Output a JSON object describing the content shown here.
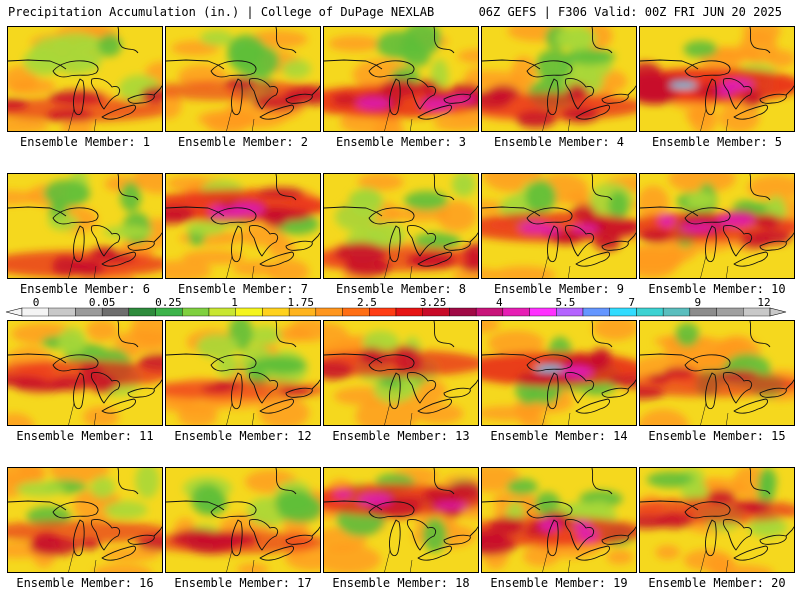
{
  "header": {
    "left": "Precipitation Accumulation (in.) | College of DuPage NEXLAB",
    "right": "06Z GEFS | F306 Valid: 00Z FRI JUN 20 2025"
  },
  "member_prefix": "Ensemble Member:",
  "members": [
    {
      "id": "1",
      "label": "Ensemble Member: 1",
      "green": 0.45,
      "wet": 0.4,
      "band": 0.78
    },
    {
      "id": "2",
      "label": "Ensemble Member: 2",
      "green": 0.55,
      "wet": 0.2,
      "band": 0.6
    },
    {
      "id": "3",
      "label": "Ensemble Member: 3",
      "green": 0.25,
      "wet": 0.85,
      "band": 0.7
    },
    {
      "id": "4",
      "label": "Ensemble Member: 4",
      "green": 0.6,
      "wet": 0.55,
      "band": 0.75
    },
    {
      "id": "5",
      "label": "Ensemble Member: 5",
      "green": 0.1,
      "wet": 0.95,
      "band": 0.55
    },
    {
      "id": "6",
      "label": "Ensemble Member: 6",
      "green": 0.5,
      "wet": 0.55,
      "band": 0.85
    },
    {
      "id": "7",
      "label": "Ensemble Member: 7",
      "green": 0.3,
      "wet": 0.85,
      "band": 0.3
    },
    {
      "id": "8",
      "label": "Ensemble Member: 8",
      "green": 0.55,
      "wet": 0.45,
      "band": 0.8
    },
    {
      "id": "9",
      "label": "Ensemble Member: 9",
      "green": 0.3,
      "wet": 0.7,
      "band": 0.5
    },
    {
      "id": "10",
      "label": "Ensemble Member: 10",
      "green": 0.6,
      "wet": 0.7,
      "band": 0.5
    },
    {
      "id": "11",
      "label": "Ensemble Member: 11",
      "green": 0.15,
      "wet": 0.6,
      "band": 0.5
    },
    {
      "id": "12",
      "label": "Ensemble Member: 12",
      "green": 0.6,
      "wet": 0.2,
      "band": 0.65
    },
    {
      "id": "13",
      "label": "Ensemble Member: 13",
      "green": 0.35,
      "wet": 0.55,
      "band": 0.4
    },
    {
      "id": "14",
      "label": "Ensemble Member: 14",
      "green": 0.35,
      "wet": 0.9,
      "band": 0.45
    },
    {
      "id": "15",
      "label": "Ensemble Member: 15",
      "green": 0.2,
      "wet": 0.4,
      "band": 0.6
    },
    {
      "id": "16",
      "label": "Ensemble Member: 16",
      "green": 0.25,
      "wet": 0.35,
      "band": 0.6
    },
    {
      "id": "17",
      "label": "Ensemble Member: 17",
      "green": 0.45,
      "wet": 0.35,
      "band": 0.7
    },
    {
      "id": "18",
      "label": "Ensemble Member: 18",
      "green": 0.35,
      "wet": 0.8,
      "band": 0.3
    },
    {
      "id": "19",
      "label": "Ensemble Member: 19",
      "green": 0.5,
      "wet": 0.7,
      "band": 0.6
    },
    {
      "id": "20",
      "label": "Ensemble Member: 20",
      "green": 0.6,
      "wet": 0.45,
      "band": 0.4
    }
  ],
  "colorbar": {
    "tick_labels": [
      "0",
      "0.05",
      "0.25",
      "1",
      "1.75",
      "2.5",
      "3.25",
      "4",
      "5.5",
      "7",
      "9",
      "12"
    ],
    "colors": [
      "#f4f4f4",
      "#c8c8c8",
      "#9a9a9a",
      "#6e6e6e",
      "#2e8b3c",
      "#3cb34a",
      "#7fd040",
      "#c8e632",
      "#f5f51e",
      "#ffd21e",
      "#ffb41e",
      "#ff961e",
      "#ff6e14",
      "#ff3c14",
      "#e61414",
      "#c80a28",
      "#a00a46",
      "#c8147a",
      "#e61eb4",
      "#ff32ff",
      "#b464ff",
      "#6496ff",
      "#32dcff",
      "#3cd2d2",
      "#5abebe",
      "#8c8c8c",
      "#a0a0a0",
      "#c8c8c8"
    ]
  }
}
